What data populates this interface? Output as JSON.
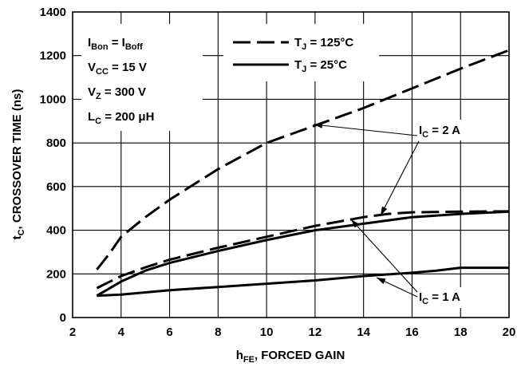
{
  "chart_data": {
    "type": "line",
    "xlabel": {
      "main": "h",
      "sub": "FE",
      "rest": ", FORCED GAIN"
    },
    "ylabel": {
      "main": "t",
      "sub": "C",
      "rest": ", CROSSOVER TIME (ns)"
    },
    "xlim": [
      2,
      20
    ],
    "ylim": [
      0,
      1400
    ],
    "xticks": [
      2,
      4,
      6,
      8,
      10,
      12,
      14,
      16,
      18,
      20
    ],
    "yticks": [
      0,
      200,
      400,
      600,
      800,
      1000,
      1200,
      1400
    ],
    "grid": true,
    "conditions": [
      {
        "main": "I",
        "sub": "Bon",
        "mid": " = I",
        "sub2": "Boff"
      },
      {
        "main": "V",
        "sub": "CC",
        "mid": " = 15 V",
        "sub2": ""
      },
      {
        "main": "V",
        "sub": "Z",
        "mid": " = 300 V",
        "sub2": ""
      },
      {
        "main": "L",
        "sub": "C",
        "mid": " = 200 μH",
        "sub2": ""
      }
    ],
    "legend": [
      {
        "style": "dashed",
        "main": "T",
        "sub": "J",
        "rest": " = 125°C"
      },
      {
        "style": "solid",
        "main": "T",
        "sub": "J",
        "rest": " = 25°C"
      }
    ],
    "series": [
      {
        "style": "dashed",
        "x": [
          3,
          3.5,
          4,
          5,
          6,
          8,
          10,
          12,
          14,
          16,
          18,
          20
        ],
        "y": [
          220,
          290,
          370,
          460,
          540,
          680,
          800,
          880,
          960,
          1050,
          1140,
          1225
        ]
      },
      {
        "style": "dashed",
        "x": [
          3,
          4,
          5,
          6,
          8,
          10,
          12,
          14,
          15,
          16,
          18,
          20
        ],
        "y": [
          135,
          190,
          230,
          265,
          320,
          370,
          420,
          460,
          475,
          482,
          485,
          487
        ]
      },
      {
        "style": "solid",
        "x": [
          3,
          4,
          5,
          6,
          8,
          10,
          12,
          14,
          16,
          18,
          20
        ],
        "y": [
          100,
          165,
          215,
          250,
          305,
          355,
          400,
          430,
          460,
          475,
          485
        ]
      },
      {
        "style": "solid",
        "x": [
          3,
          4,
          5,
          6,
          8,
          10,
          12,
          14,
          16,
          17,
          18,
          20
        ],
        "y": [
          100,
          105,
          115,
          125,
          140,
          155,
          170,
          190,
          205,
          215,
          228,
          228
        ]
      }
    ],
    "annotations": [
      {
        "main": "I",
        "sub": "C",
        "rest": " = 2 A"
      },
      {
        "main": "I",
        "sub": "C",
        "rest": " = 1 A"
      }
    ]
  }
}
